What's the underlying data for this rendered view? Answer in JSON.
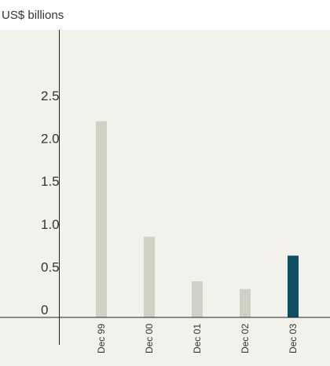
{
  "chart_data": {
    "type": "bar",
    "ylabel": "US$ billions",
    "categories": [
      "Dec 99",
      "Dec 00",
      "Dec 01",
      "Dec 02",
      "Dec 03"
    ],
    "values": [
      2.2,
      0.85,
      0.33,
      0.24,
      0.63
    ],
    "ylim": [
      0,
      2.75
    ],
    "yticks": [
      "0",
      "0.5",
      "1.0",
      "1.5",
      "2.0",
      "2.5"
    ],
    "ytick_values": [
      0,
      0.5,
      1.0,
      1.5,
      2.0,
      2.5
    ],
    "grid": false,
    "colors": {
      "plot_background": "#f2f1ec",
      "bar": "#d1d0c4",
      "highlight_bar": "#0d4f63",
      "axis": "#222222"
    },
    "highlight_index": 4
  }
}
